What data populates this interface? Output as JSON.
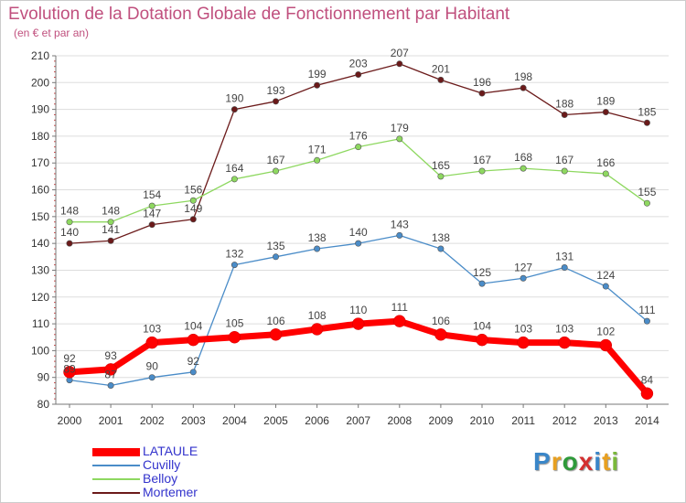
{
  "header": {
    "title": "Evolution de la Dotation Globale de Fonctionnement par Habitant",
    "subtitle": "(en € et par an)"
  },
  "logo": {
    "text": "Proxiti",
    "letter_colors": [
      "#3a86c8",
      "#e8a020",
      "#2e9a3a",
      "#d43030",
      "#3a86c8",
      "#e8a020",
      "#7ab83a"
    ]
  },
  "colors": {
    "axis": "#777777",
    "tick_label": "#333333",
    "grid": "#dddddd",
    "data_label": "#444444"
  },
  "chart_data": {
    "type": "line",
    "title": "Evolution de la Dotation Globale de Fonctionnement par Habitant",
    "subtitle": "(en € et par an)",
    "xlabel": "",
    "ylabel": "",
    "x": [
      "2000",
      "2001",
      "2002",
      "2003",
      "2004",
      "2005",
      "2006",
      "2007",
      "2008",
      "2009",
      "2010",
      "2011",
      "2012",
      "2013",
      "2014"
    ],
    "ylim": [
      80,
      210
    ],
    "yticks": [
      "80",
      "90",
      "100",
      "110",
      "120",
      "130",
      "140",
      "150",
      "160",
      "170",
      "180",
      "190",
      "200",
      "210"
    ],
    "grid": true,
    "legend_position": "bottom-left",
    "series": [
      {
        "name": "LATAULE",
        "color": "#ff0000",
        "values": [
          92,
          93,
          103,
          104,
          105,
          106,
          108,
          110,
          111,
          106,
          104,
          103,
          103,
          102,
          84
        ]
      },
      {
        "name": "Cuvilly",
        "color": "#4a8cc8",
        "values": [
          89,
          87,
          90,
          92,
          132,
          135,
          138,
          140,
          143,
          138,
          125,
          127,
          131,
          124,
          111
        ]
      },
      {
        "name": "Belloy",
        "color": "#8ed860",
        "values": [
          148,
          148,
          154,
          156,
          164,
          167,
          171,
          176,
          179,
          165,
          167,
          168,
          167,
          166,
          155
        ]
      },
      {
        "name": "Mortemer",
        "color": "#6b1a1a",
        "values": [
          140,
          141,
          147,
          149,
          190,
          193,
          199,
          203,
          207,
          201,
          196,
          198,
          188,
          189,
          185
        ]
      }
    ]
  }
}
